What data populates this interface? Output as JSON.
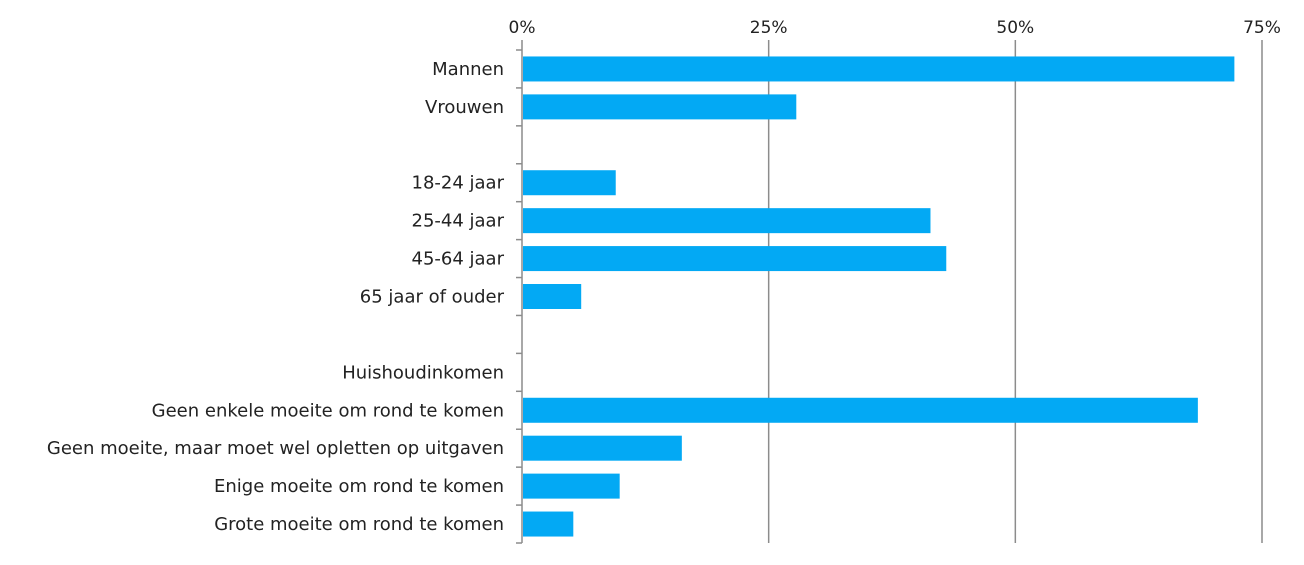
{
  "chart_data": {
    "type": "bar",
    "orientation": "horizontal",
    "x_axis_position": "top",
    "grid": true,
    "xlim": [
      0,
      75
    ],
    "x_ticks": [
      0,
      25,
      50,
      75
    ],
    "x_tick_labels": [
      "0%",
      "25%",
      "50%",
      "75%"
    ],
    "bar_color": "#03a9f4",
    "categories": [
      "Mannen",
      "Vrouwen",
      "",
      "18-24 jaar",
      "25-44 jaar",
      "45-64 jaar",
      "65 jaar of ouder",
      "",
      "Huishoudinkomen",
      "Geen enkele moeite om rond te komen",
      "Geen moeite, maar moet wel opletten op uitgaven",
      "Enige moeite om rond te komen",
      "Grote moeite om rond te komen"
    ],
    "values": [
      72.2,
      27.8,
      null,
      9.5,
      41.4,
      43.0,
      6.0,
      null,
      null,
      68.5,
      16.2,
      9.9,
      5.2
    ]
  }
}
